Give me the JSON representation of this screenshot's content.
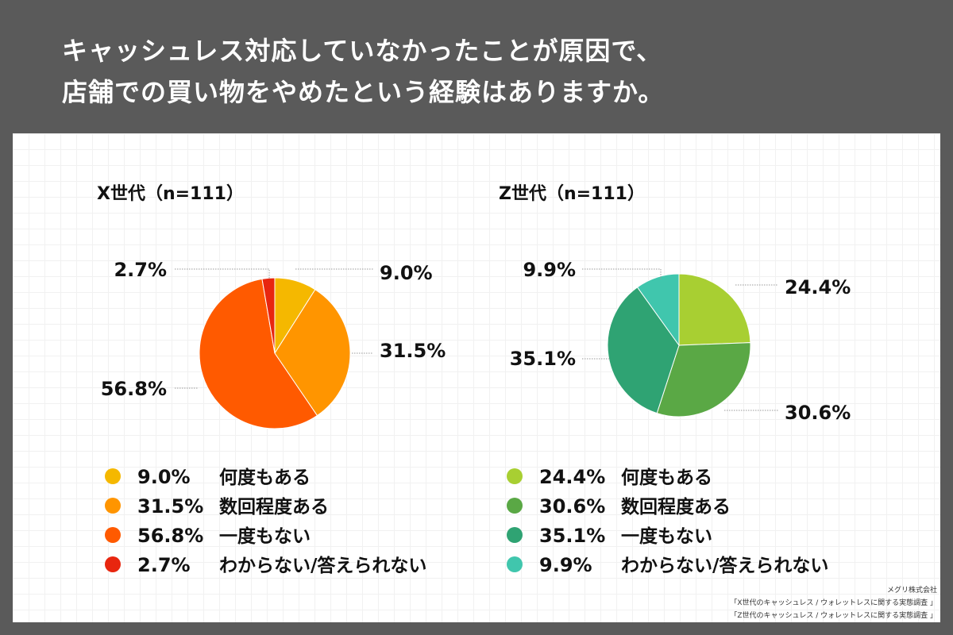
{
  "header": {
    "title_line1": "キャッシュレス対応していなかったことが原因で、",
    "title_line2": "店舗での買い物をやめたという経験はありますか。"
  },
  "source": {
    "company": "メグリ株式会社",
    "line1": "「X世代のキャッシュレス / ウォレットレスに関する実態調査 」",
    "line2": "「Z世代のキャッシュレス / ウォレットレスに関する実態調査 」"
  },
  "chart_data": [
    {
      "type": "pie",
      "title": "X世代（n=111）",
      "slices": [
        {
          "label": "何度もある",
          "value": 9.0,
          "display": "9.0%",
          "color": "#f5b800"
        },
        {
          "label": "数回程度ある",
          "value": 31.5,
          "display": "31.5%",
          "color": "#ff9500"
        },
        {
          "label": "一度もない",
          "value": 56.8,
          "display": "56.8%",
          "color": "#ff5a00"
        },
        {
          "label": "わからない/答えられない",
          "value": 2.7,
          "display": "2.7%",
          "color": "#e8260f"
        }
      ]
    },
    {
      "type": "pie",
      "title": "Z世代（n=111）",
      "slices": [
        {
          "label": "何度もある",
          "value": 24.4,
          "display": "24.4%",
          "color": "#a8cf32"
        },
        {
          "label": "数回程度ある",
          "value": 30.6,
          "display": "30.6%",
          "color": "#5aa845"
        },
        {
          "label": "一度もない",
          "value": 35.1,
          "display": "35.1%",
          "color": "#2fa373"
        },
        {
          "label": "わからない/答えられない",
          "value": 9.9,
          "display": "9.9%",
          "color": "#40c6ad"
        }
      ]
    }
  ]
}
